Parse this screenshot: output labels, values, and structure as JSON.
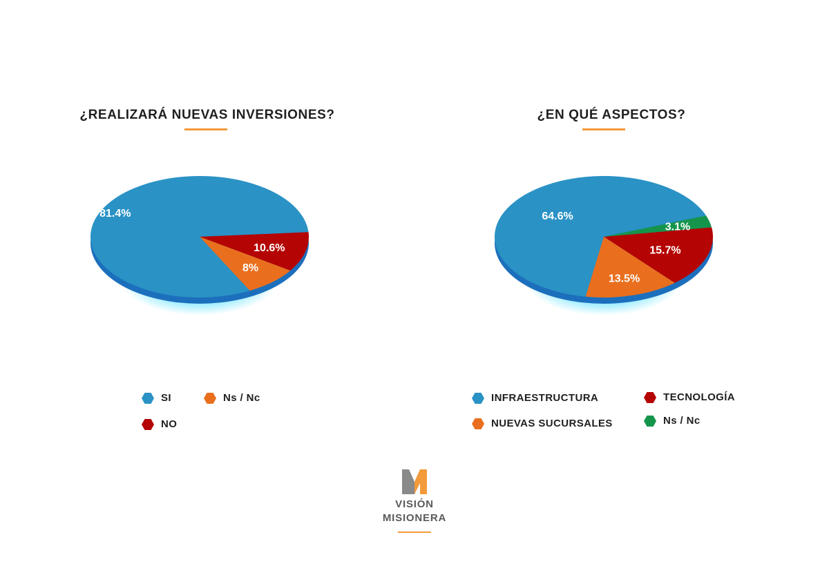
{
  "colors": {
    "si": "#2a92c5",
    "no": "#b50404",
    "nsnc": "#e96f1e",
    "tecnologia": "#b50404",
    "nsnc_green": "#15954b",
    "accent": "#f39a3a",
    "glow": "#0ad3ff",
    "rim": "#1c6fbc"
  },
  "chart_data": [
    {
      "type": "pie",
      "title": "¿REALIZARÁ NUEVAS INVERSIONES?",
      "categories": [
        "SI",
        "NO",
        "Ns / Nc"
      ],
      "values": [
        81.4,
        10.6,
        8
      ],
      "value_labels": [
        "81.4%",
        "10.6%",
        "8%"
      ],
      "colors": [
        "#2a92c5",
        "#b50404",
        "#e96f1e"
      ],
      "legend": [
        {
          "label": "SI",
          "color": "#2a92c5"
        },
        {
          "label": "Ns / Nc",
          "color": "#e96f1e"
        },
        {
          "label": "NO",
          "color": "#b50404"
        }
      ]
    },
    {
      "type": "pie",
      "title": "¿EN QUÉ ASPECTOS?",
      "categories": [
        "INFRAESTRUCTURA",
        "Ns / Nc",
        "TECNOLOGÍA",
        "NUEVAS SUCURSALES"
      ],
      "values": [
        64.6,
        3.1,
        15.7,
        13.5
      ],
      "value_labels": [
        "64.6%",
        "3.1%",
        "15.7%",
        "13.5%"
      ],
      "colors": [
        "#2a92c5",
        "#15954b",
        "#b50404",
        "#e96f1e"
      ],
      "legend": [
        {
          "label": "INFRAESTRUCTURA",
          "color": "#2a92c5"
        },
        {
          "label": "TECNOLOGÍA",
          "color": "#b50404"
        },
        {
          "label": "NUEVAS SUCURSALES",
          "color": "#e96f1e"
        },
        {
          "label": "Ns / Nc",
          "color": "#15954b"
        }
      ]
    }
  ],
  "logo": {
    "line1": "VISIÓN",
    "line2": "MISIONERA",
    "mark_color_left": "#8a8a8a",
    "mark_color_right": "#f39a3a"
  }
}
